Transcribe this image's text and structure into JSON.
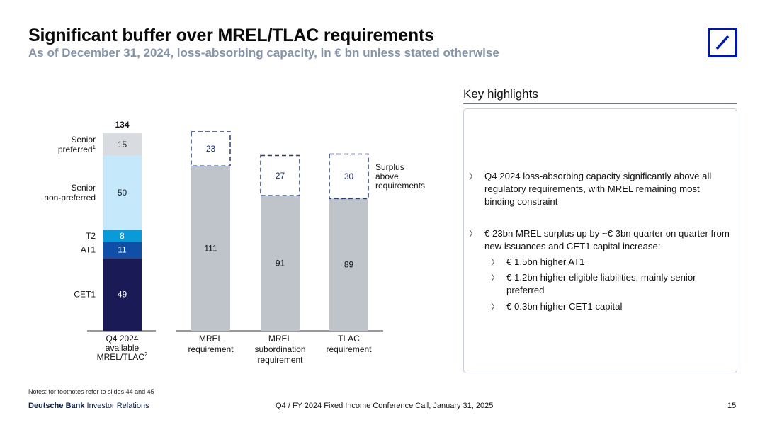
{
  "header": {
    "title": "Significant buffer over MREL/TLAC requirements",
    "subtitle": "As of December 31, 2024, loss-absorbing capacity, in € bn unless stated otherwise"
  },
  "colors": {
    "cet1": "#1a1a57",
    "at1": "#0f4fa8",
    "t2": "#0a9ad8",
    "senior_non_preferred": "#c6e8fb",
    "senior_preferred": "#d8dce1",
    "requirement_bar": "#bfc4cb",
    "dashed_border": "#2a3f73",
    "logo": "#0018a8"
  },
  "chart_data": {
    "type": "bar",
    "title": "",
    "stacked_bar": {
      "category": "Q4 2024 available MREL/TLAC",
      "category_lines": [
        "Q4 2024",
        "available",
        "MREL/TLAC"
      ],
      "category_superscript": "2",
      "total": 134,
      "segments": [
        {
          "name": "CET1",
          "value": 49,
          "color_key": "cet1"
        },
        {
          "name": "AT1",
          "value": 11,
          "color_key": "at1"
        },
        {
          "name": "T2",
          "value": 8,
          "color_key": "t2"
        },
        {
          "name": "Senior non-preferred",
          "label_lines": [
            "Senior",
            "non-preferred"
          ],
          "value": 50,
          "color_key": "senior_non_preferred"
        },
        {
          "name": "Senior preferred",
          "label_lines": [
            "Senior",
            "preferred"
          ],
          "label_superscript": "1",
          "value": 15,
          "color_key": "senior_preferred"
        }
      ]
    },
    "requirement_bars": [
      {
        "category_lines": [
          "MREL",
          "requirement"
        ],
        "requirement": 111,
        "surplus": 23
      },
      {
        "category_lines": [
          "MREL",
          "subordination",
          "requirement"
        ],
        "requirement": 91,
        "surplus": 27
      },
      {
        "category_lines": [
          "TLAC",
          "requirement"
        ],
        "requirement": 89,
        "surplus": 30
      }
    ],
    "surplus_legend_lines": [
      "Surplus",
      "above",
      "requirements"
    ],
    "ylim": [
      0,
      134
    ]
  },
  "highlights": {
    "title": "Key highlights",
    "bullets": [
      {
        "text": "Q4 2024 loss-absorbing capacity significantly above all regulatory requirements, with MREL remaining most binding constraint"
      },
      {
        "text": "€ 23bn MREL surplus up by ~€ 3bn quarter on quarter from new issuances and CET1 capital increase:"
      }
    ],
    "sub_bullets": [
      {
        "text": "€ 1.5bn higher AT1"
      },
      {
        "text": "€ 1.2bn higher eligible liabilities, mainly senior preferred"
      },
      {
        "text": "€ 0.3bn higher CET1 capital"
      }
    ],
    "marker": "〉"
  },
  "footer": {
    "notes": "Notes: for footnotes refer to slides 44 and 45",
    "brand_bold": "Deutsche Bank",
    "brand_rest": " Investor Relations",
    "center": "Q4 / FY 2024 Fixed Income Conference Call, January 31, 2025",
    "page": "15"
  }
}
